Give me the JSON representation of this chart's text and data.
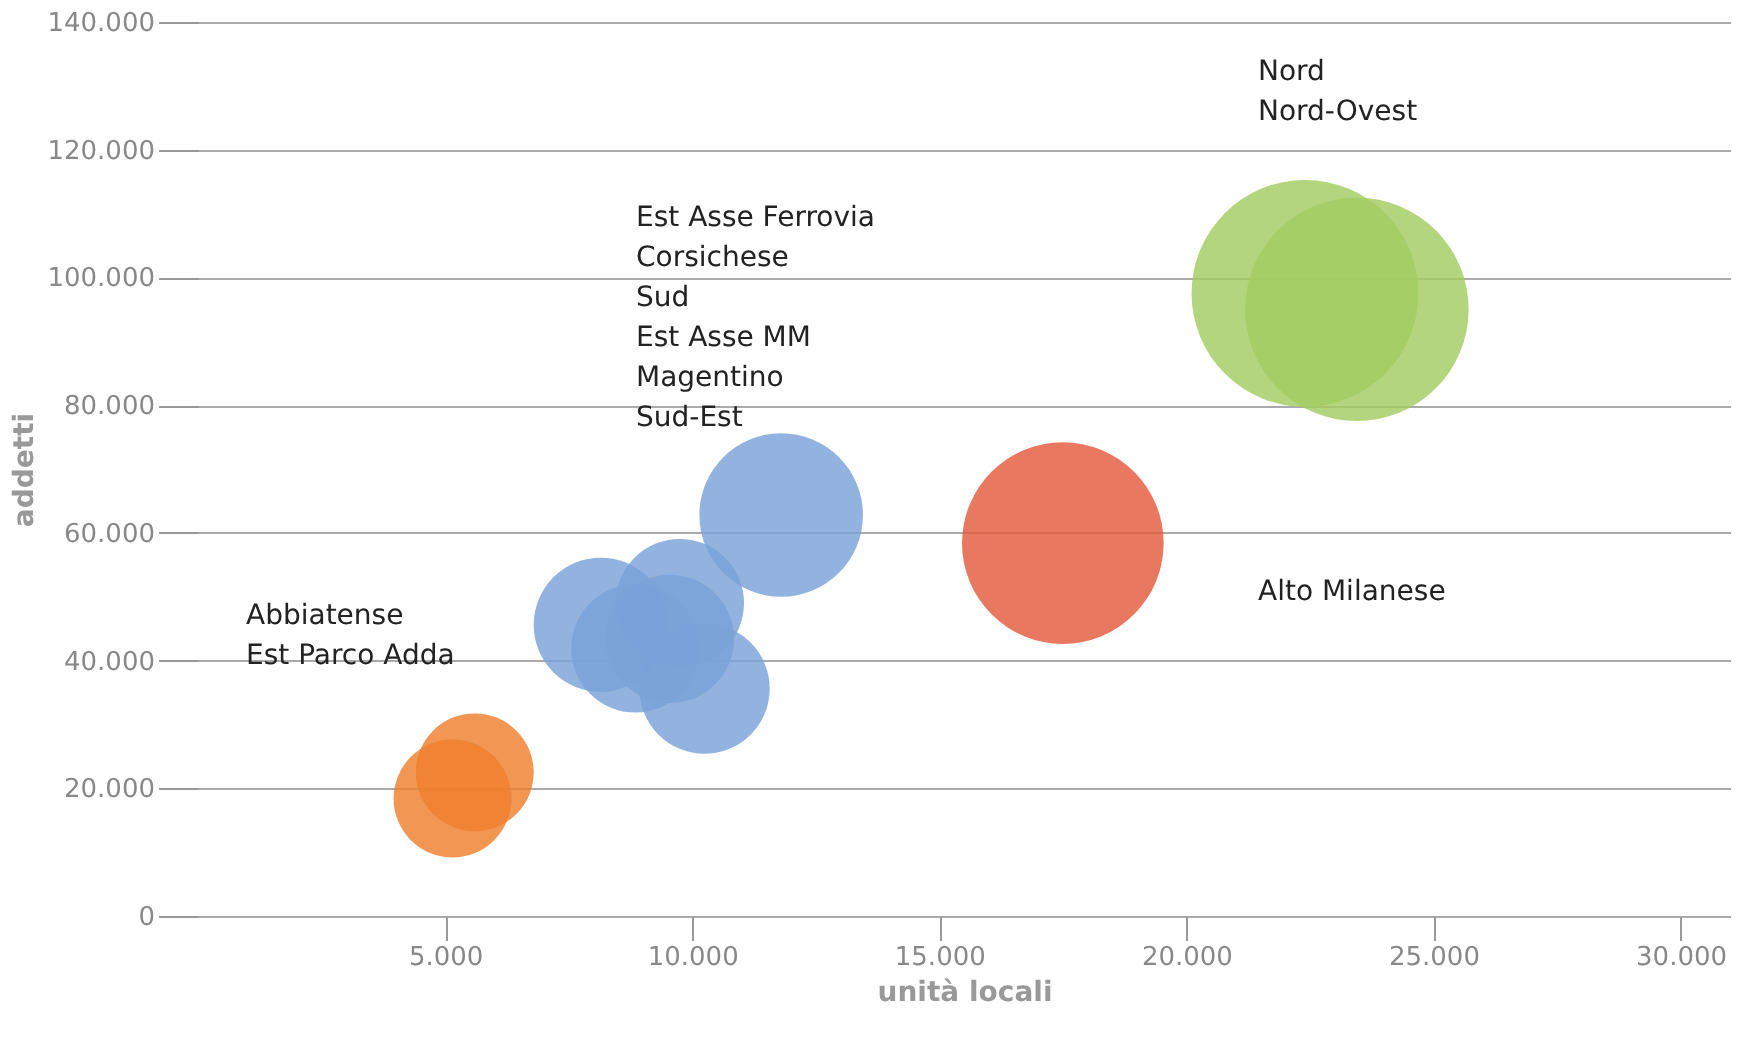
{
  "chart_data": {
    "type": "bubble",
    "xlabel": "unità locali",
    "ylabel": "addetti",
    "xlim": [
      0,
      31000
    ],
    "ylim": [
      0,
      140000
    ],
    "xticks": [
      {
        "value": 5000,
        "label": "5.000"
      },
      {
        "value": 10000,
        "label": "10.000"
      },
      {
        "value": 15000,
        "label": "15.000"
      },
      {
        "value": 20000,
        "label": "20.000"
      },
      {
        "value": 25000,
        "label": "25.000"
      },
      {
        "value": 30000,
        "label": "30.000"
      }
    ],
    "yticks": [
      0,
      {
        "value": 20000,
        "label": "20.000"
      },
      {
        "value": 40000,
        "label": "40.000"
      },
      {
        "value": 60000,
        "label": "60.000"
      },
      {
        "value": 80000,
        "label": "80.000"
      },
      {
        "value": 100000,
        "label": "100.000"
      },
      {
        "value": 120000,
        "label": "120.000"
      },
      {
        "value": 140000,
        "label": "140.000"
      }
    ],
    "grid": "y",
    "legend": false,
    "marker": "circle",
    "series": [
      {
        "color": "#ef7f2d",
        "x": [
          5600,
          5150
        ],
        "values": [
          22500,
          18400
        ],
        "sizes": [
          0.27,
          0.27
        ]
      },
      {
        "color": "#7aa2d8",
        "x": [
          8150,
          8850,
          9750,
          9550,
          10250,
          11800
        ],
        "values": [
          45600,
          41900,
          49000,
          43400,
          35600,
          62800
        ],
        "sizes": [
          0.35,
          0.32,
          0.32,
          0.32,
          0.33,
          0.52
        ]
      },
      {
        "color": "#e35a3c",
        "x": [
          17500
        ],
        "values": [
          58400
        ],
        "sizes": [
          0.79
        ]
      },
      {
        "color": "#a2cc62",
        "x": [
          22400,
          23450
        ],
        "values": [
          97500,
          95000
        ],
        "sizes": [
          1,
          0.97
        ]
      }
    ],
    "annotations": [
      "Abbiatense\nEst Parco Adda",
      "Est Asse Ferrovia\nCorsichese\nSud\nEst Asse MM\nMagentino\nSud-Est",
      "Alto Milanese",
      "Nord\nNord-Ovest"
    ]
  }
}
